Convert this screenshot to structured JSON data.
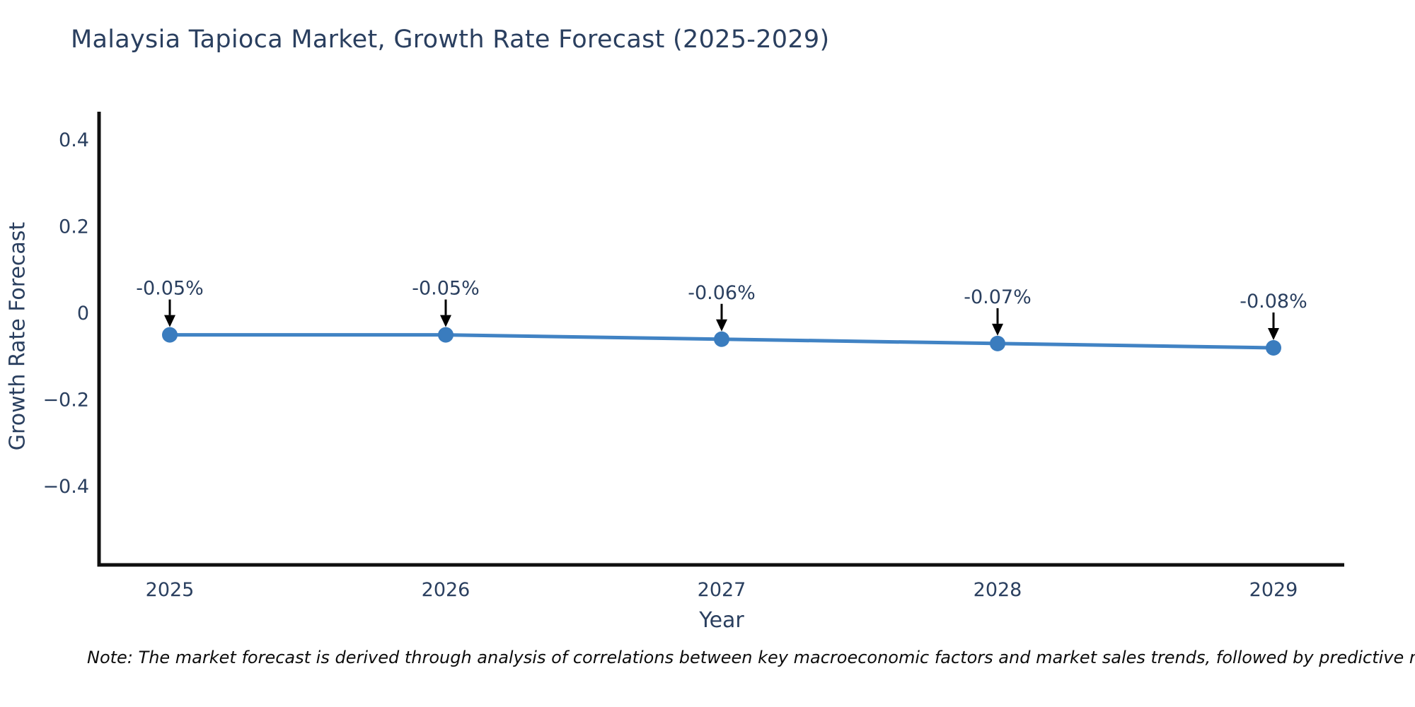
{
  "page": {
    "background_color": "#ffffff",
    "note": "Note: The market forecast is derived through analysis of correlations between key macroeconomic factors and market sales trends, followed by predictive modeling to project future sales."
  },
  "chart_data": {
    "type": "line",
    "title": "Malaysia Tapioca Market, Growth Rate Forecast (2025-2029)",
    "xlabel": "Year",
    "ylabel": "Growth Rate Forecast",
    "categories": [
      "2025",
      "2026",
      "2027",
      "2028",
      "2029"
    ],
    "series": [
      {
        "name": "Growth Rate Forecast",
        "values": [
          -0.05,
          -0.05,
          -0.06,
          -0.07,
          -0.08
        ],
        "point_labels": [
          "-0.05%",
          "-0.05%",
          "-0.06%",
          "-0.07%",
          "-0.08%"
        ]
      }
    ],
    "yticks": [
      {
        "value": 0.4,
        "label": "0.4"
      },
      {
        "value": 0.2,
        "label": "0.2"
      },
      {
        "value": 0,
        "label": "0"
      },
      {
        "value": -0.2,
        "label": "−0.2"
      },
      {
        "value": -0.4,
        "label": "−0.4"
      }
    ],
    "ylim": [
      -0.585,
      0.465
    ],
    "grid": false,
    "legend": "none",
    "colors": {
      "line": "#4183c4",
      "marker": "#3a7cbe",
      "axis_line": "#0f0f0f",
      "text": "#2a3f5f",
      "annotation_arrow": "#000000"
    }
  }
}
